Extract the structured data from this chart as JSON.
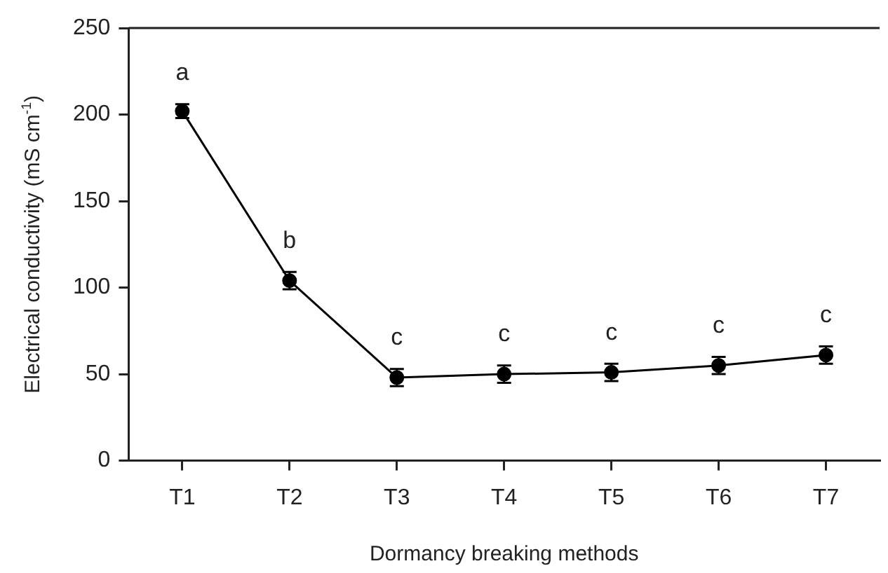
{
  "chart_data": {
    "type": "line",
    "xlabel": "Dormancy breaking methods",
    "ylabel": "Electrical conductivity (mS cm$^{-1}$)",
    "categories": [
      "T1",
      "T2",
      "T3",
      "T4",
      "T5",
      "T6",
      "T7"
    ],
    "series": [
      {
        "color": "#000000",
        "values": [
          202,
          104,
          48,
          50,
          51,
          55,
          61
        ],
        "errors": [
          4,
          5,
          5,
          5,
          5,
          5,
          5
        ]
      }
    ],
    "ylim": [
      0,
      250
    ],
    "yticks": [
      0,
      50,
      100,
      150,
      200,
      250
    ],
    "grid": false,
    "legend": false,
    "marker": "circle",
    "line_style": "solid",
    "annotations": [
      "a",
      "b",
      "c",
      "c",
      "c",
      "c",
      "c"
    ]
  }
}
